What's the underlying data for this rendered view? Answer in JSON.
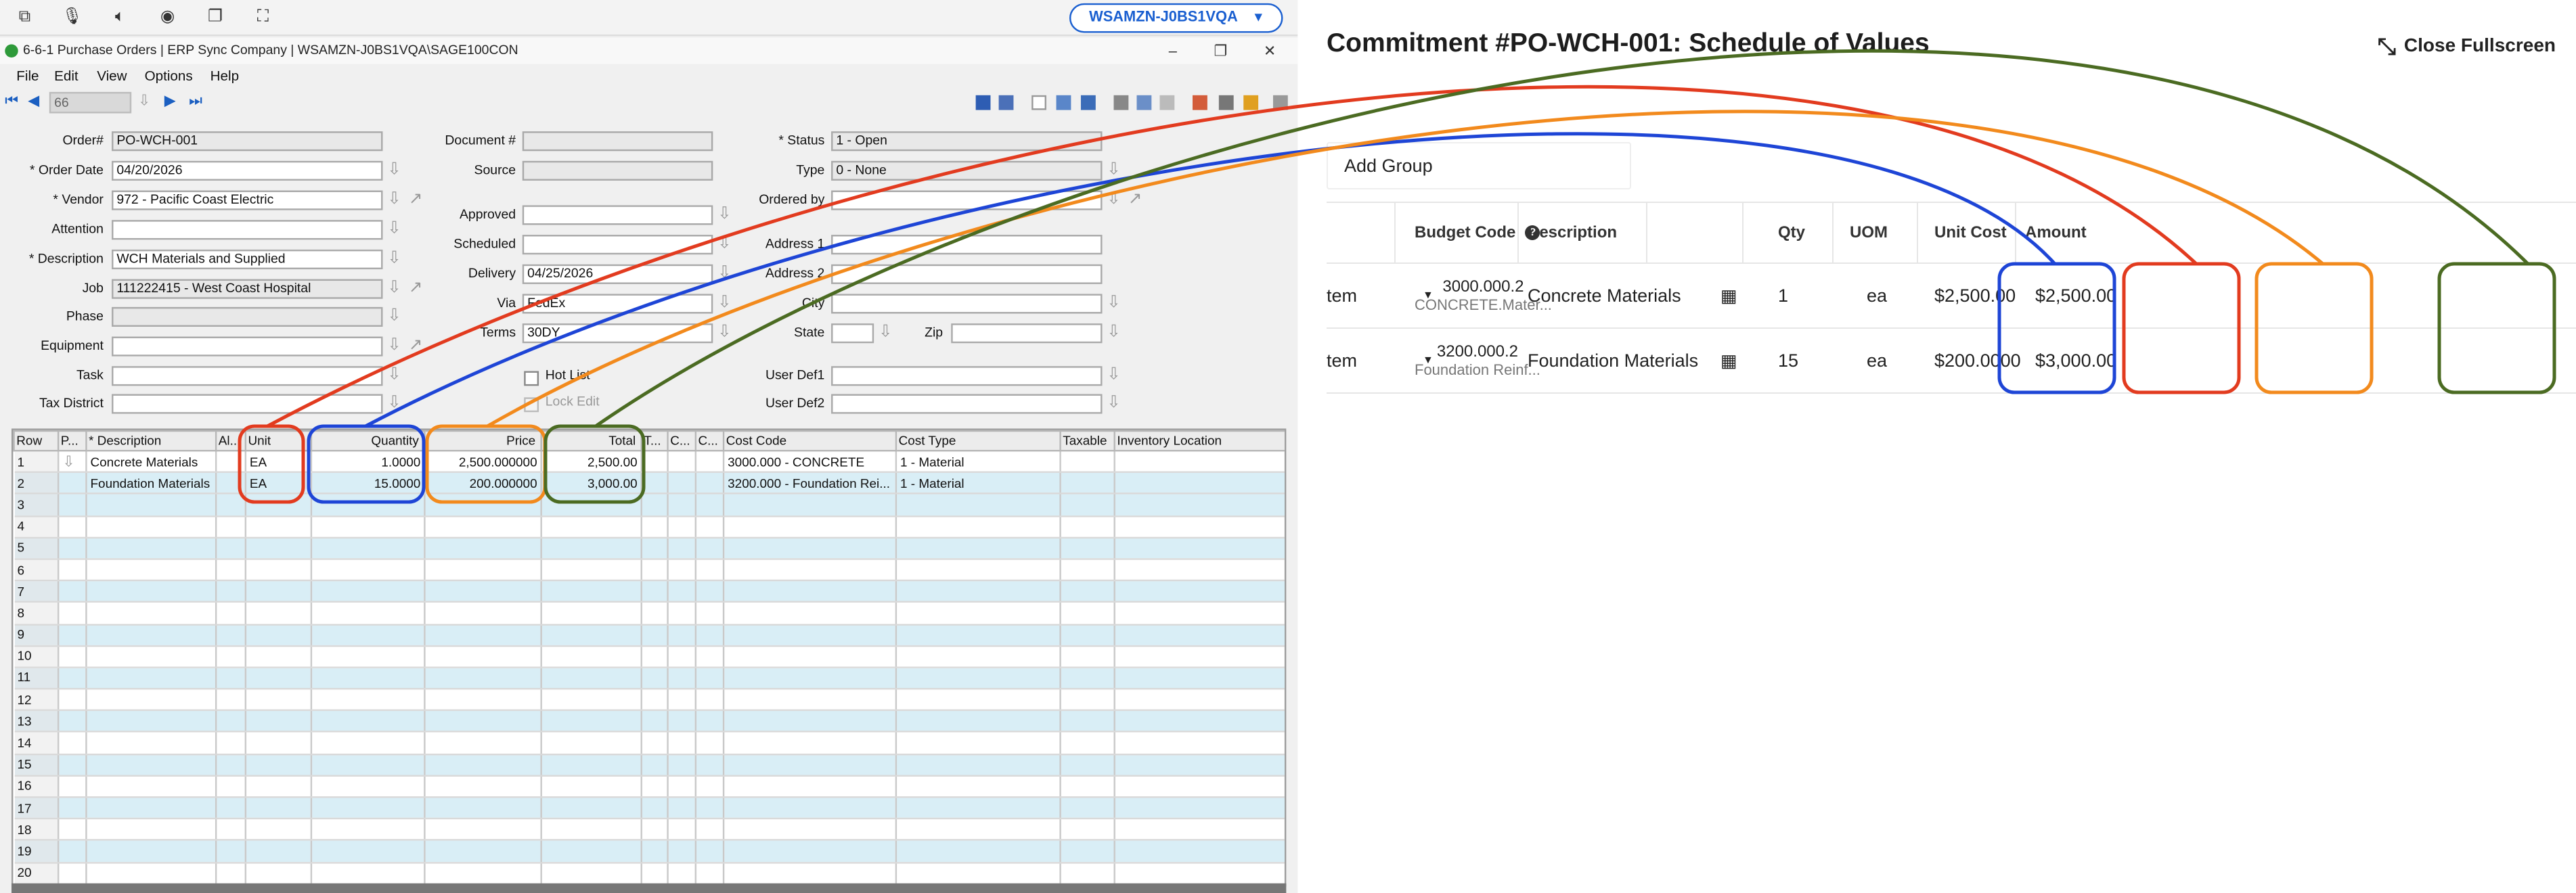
{
  "left_app": {
    "remote_bar": {
      "icons": [
        "windows-icon",
        "microphone-icon",
        "speaker-icon",
        "record-icon",
        "copy-window-icon",
        "fullscreen-icon"
      ],
      "host_label": "WSAMZN-J0BS1VQA"
    },
    "title": "6-6-1 Purchase Orders | ERP Sync Company | WSAMZN-J0BS1VQA\\SAGE100CON",
    "window_controls": [
      "–",
      "❐",
      "✕"
    ],
    "menu": [
      "File",
      "Edit",
      "View",
      "Options",
      "Help"
    ],
    "record_nav_value": "66",
    "form": {
      "order_label": "Order#",
      "order_value": "PO-WCH-001",
      "order_date_label": "* Order Date",
      "order_date_value": "04/20/2026",
      "vendor_label": "* Vendor",
      "vendor_value": "972 - Pacific Coast Electric",
      "attention_label": "Attention",
      "attention_value": "",
      "description_label": "* Description",
      "description_value": "WCH Materials and Supplied",
      "job_label": "Job",
      "job_value": "111222415 - West Coast Hospital",
      "phase_label": "Phase",
      "phase_value": "",
      "equipment_label": "Equipment",
      "equipment_value": "",
      "task_label": "Task",
      "task_value": "",
      "tax_district_label": "Tax District",
      "tax_district_value": "",
      "document_label": "Document #",
      "document_value": "",
      "source_label": "Source",
      "source_value": "",
      "approved_label": "Approved",
      "approved_value": "",
      "scheduled_label": "Scheduled",
      "scheduled_value": "",
      "delivery_label": "Delivery",
      "delivery_value": "04/25/2026",
      "via_label": "Via",
      "via_value": "FedEx",
      "terms_label": "Terms",
      "terms_value": "30DY",
      "hot_list_label": "Hot List",
      "lock_edit_label": "Lock Edit",
      "status_label": "* Status",
      "status_value": "1 - Open",
      "type_label": "Type",
      "type_value": "0 - None",
      "ordered_by_label": "Ordered by",
      "ordered_by_value": "",
      "address1_label": "Address 1",
      "address1_value": "",
      "address2_label": "Address 2",
      "address2_value": "",
      "city_label": "City",
      "city_value": "",
      "state_label": "State",
      "state_value": "",
      "zip_label": "Zip",
      "zip_value": "",
      "user_def1_label": "User Def1",
      "user_def1_value": "",
      "user_def2_label": "User Def2",
      "user_def2_value": ""
    },
    "grid": {
      "columns": [
        "Row",
        "P...",
        "* Description",
        "Al...",
        "Unit",
        "Quantity",
        "Price",
        "Total",
        "T...",
        "C...",
        "C...",
        "Cost Code",
        "Cost Type",
        "Taxable",
        "Inventory Location"
      ],
      "rows": [
        {
          "row": "1",
          "description": "Concrete Materials",
          "unit": "EA",
          "quantity": "1.0000",
          "price": "2,500.000000",
          "total": "2,500.00",
          "cost_code": "3000.000 - CONCRETE",
          "cost_type": "1 - Material"
        },
        {
          "row": "2",
          "description": "Foundation Materials",
          "unit": "EA",
          "quantity": "15.0000",
          "price": "200.000000",
          "total": "3,000.00",
          "cost_code": "3200.000 - Foundation Rei...",
          "cost_type": "1 - Material"
        }
      ],
      "empty_rows": [
        "3",
        "4",
        "5",
        "6",
        "7",
        "8",
        "9",
        "10",
        "11",
        "12",
        "13",
        "14",
        "15",
        "16",
        "17",
        "18",
        "19",
        "20"
      ]
    }
  },
  "right_panel": {
    "title": "Commitment #PO-WCH-001: Schedule of Values",
    "close_label": "Close Fullscreen",
    "add_group_label": "Add Group",
    "columns": {
      "budget_code": "Budget Code",
      "description": "Description",
      "qty": "Qty",
      "uom": "UOM",
      "unit_cost": "Unit Cost",
      "amount": "Amount"
    },
    "rows": [
      {
        "type": "tem",
        "budget_code": "3000.000.2",
        "budget_sub": "CONCRETE.Mater...",
        "description": "Concrete Materials",
        "qty": "1",
        "uom": "ea",
        "unit_cost": "$2,500.00",
        "amount": "$2,500.00"
      },
      {
        "type": "tem",
        "budget_code": "3200.000.2",
        "budget_sub": "Foundation Reinf...",
        "description": "Foundation Materials",
        "qty": "15",
        "uom": "ea",
        "unit_cost": "$200.0000",
        "amount": "$3,000.00"
      }
    ]
  },
  "annotation_colors": {
    "unit_uom": "#e23b1f",
    "quantity_qty": "#1e45d6",
    "price_unit_cost": "#f28a1d",
    "total_amount": "#4b6b22"
  }
}
